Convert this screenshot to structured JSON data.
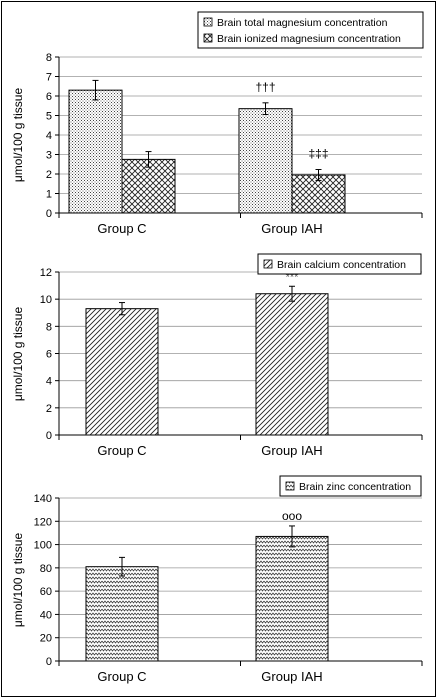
{
  "chart_data": [
    {
      "type": "bar",
      "categories": [
        "Group C",
        "Group IAH"
      ],
      "series": [
        {
          "name": "Brain total magnesium concentration",
          "values": [
            6.3,
            5.35
          ],
          "errors": [
            0.5,
            0.3
          ],
          "pattern": "dots"
        },
        {
          "name": "Brain ionized magnesium concentration",
          "values": [
            2.75,
            1.95
          ],
          "errors": [
            0.4,
            0.28
          ],
          "pattern": "crosshatch"
        }
      ],
      "annotations": [
        {
          "category": 1,
          "series": 0,
          "text": "†††"
        },
        {
          "category": 1,
          "series": 1,
          "text": "‡‡‡"
        }
      ],
      "ylabel": "μmol/100 g tissue",
      "ylim": [
        0,
        8
      ],
      "yticks": [
        0,
        1,
        2,
        3,
        4,
        5,
        6,
        7,
        8
      ],
      "grid": true,
      "legend": "top-right"
    },
    {
      "type": "bar",
      "categories": [
        "Group C",
        "Group IAH"
      ],
      "series": [
        {
          "name": "Brain calcium concentration",
          "values": [
            9.3,
            10.4
          ],
          "errors": [
            0.45,
            0.55
          ],
          "pattern": "diagonal"
        }
      ],
      "annotations": [
        {
          "category": 1,
          "series": 0,
          "text": "***"
        }
      ],
      "ylabel": "μmol/100 g tissue",
      "ylim": [
        0,
        12
      ],
      "yticks": [
        0,
        2,
        4,
        6,
        8,
        10,
        12
      ],
      "grid": true,
      "legend": "top-right"
    },
    {
      "type": "bar",
      "categories": [
        "Group C",
        "Group IAH"
      ],
      "series": [
        {
          "name": "Brain zinc concentration",
          "values": [
            81,
            107
          ],
          "errors": [
            8,
            9
          ],
          "pattern": "zigzag"
        }
      ],
      "annotations": [
        {
          "category": 1,
          "series": 0,
          "text": "ooo"
        }
      ],
      "ylabel": "μmol/100 g tissue",
      "ylim": [
        0,
        140
      ],
      "yticks": [
        0,
        20,
        40,
        60,
        80,
        100,
        120,
        140
      ],
      "grid": true,
      "legend": "top-right"
    }
  ]
}
